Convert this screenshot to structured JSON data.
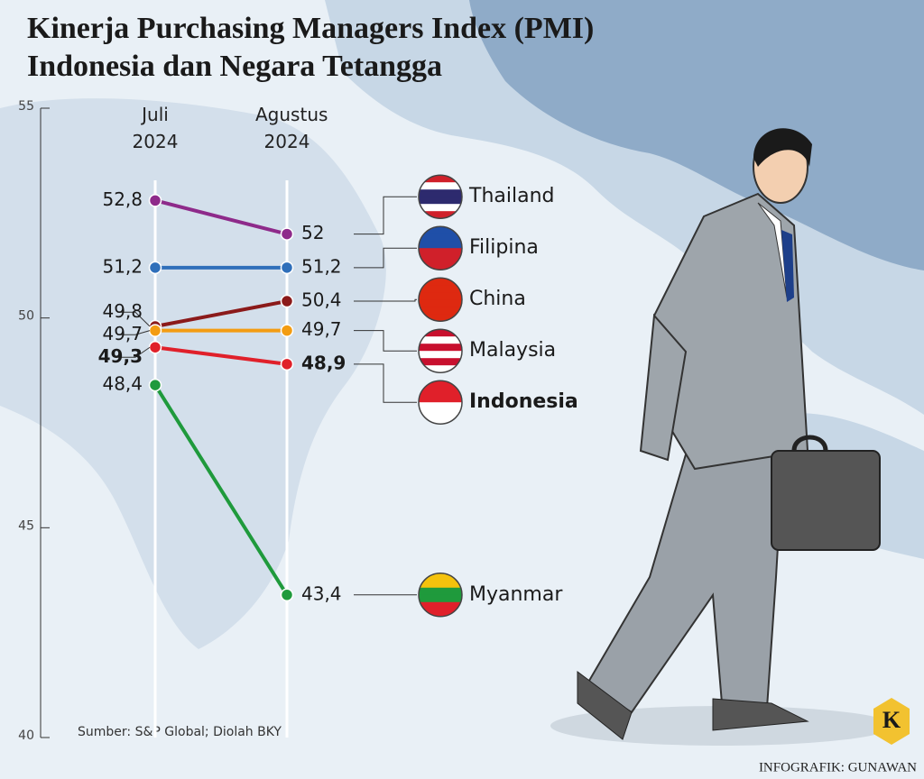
{
  "chart_data": {
    "type": "line",
    "title": "Kinerja Purchasing Managers Index (PMI)",
    "subtitle": "Indonesia dan Negara Tetangga",
    "categories": [
      "Juli 2024",
      "Agustus 2024"
    ],
    "series": [
      {
        "name": "Thailand",
        "color": "#8e2a8a",
        "values": [
          52.8,
          52
        ],
        "value_labels": [
          "52,8",
          "52"
        ]
      },
      {
        "name": "Filipina",
        "color": "#2f6fba",
        "values": [
          51.2,
          51.2
        ],
        "value_labels": [
          "51,2",
          "51,2"
        ]
      },
      {
        "name": "China",
        "color": "#8b1a1a",
        "values": [
          49.8,
          50.4
        ],
        "value_labels": [
          "49,8",
          "50,4"
        ]
      },
      {
        "name": "Malaysia",
        "color": "#f39c12",
        "values": [
          49.7,
          49.7
        ],
        "value_labels": [
          "49,7",
          "49,7"
        ]
      },
      {
        "name": "Indonesia",
        "color": "#e0202a",
        "values": [
          49.3,
          48.9
        ],
        "value_labels": [
          "49,3",
          "48,9"
        ],
        "highlight": true
      },
      {
        "name": "Myanmar",
        "color": "#1f9a3c",
        "values": [
          48.4,
          43.4
        ],
        "value_labels": [
          "48,4",
          "43,4"
        ]
      }
    ],
    "ylim": [
      40,
      55
    ],
    "yticks": [
      40,
      45,
      50,
      55
    ],
    "source": "Sumber: S&P Global; Diolah BKY",
    "credit": "INFOGRAFIK: GUNAWAN",
    "logo": "K"
  }
}
